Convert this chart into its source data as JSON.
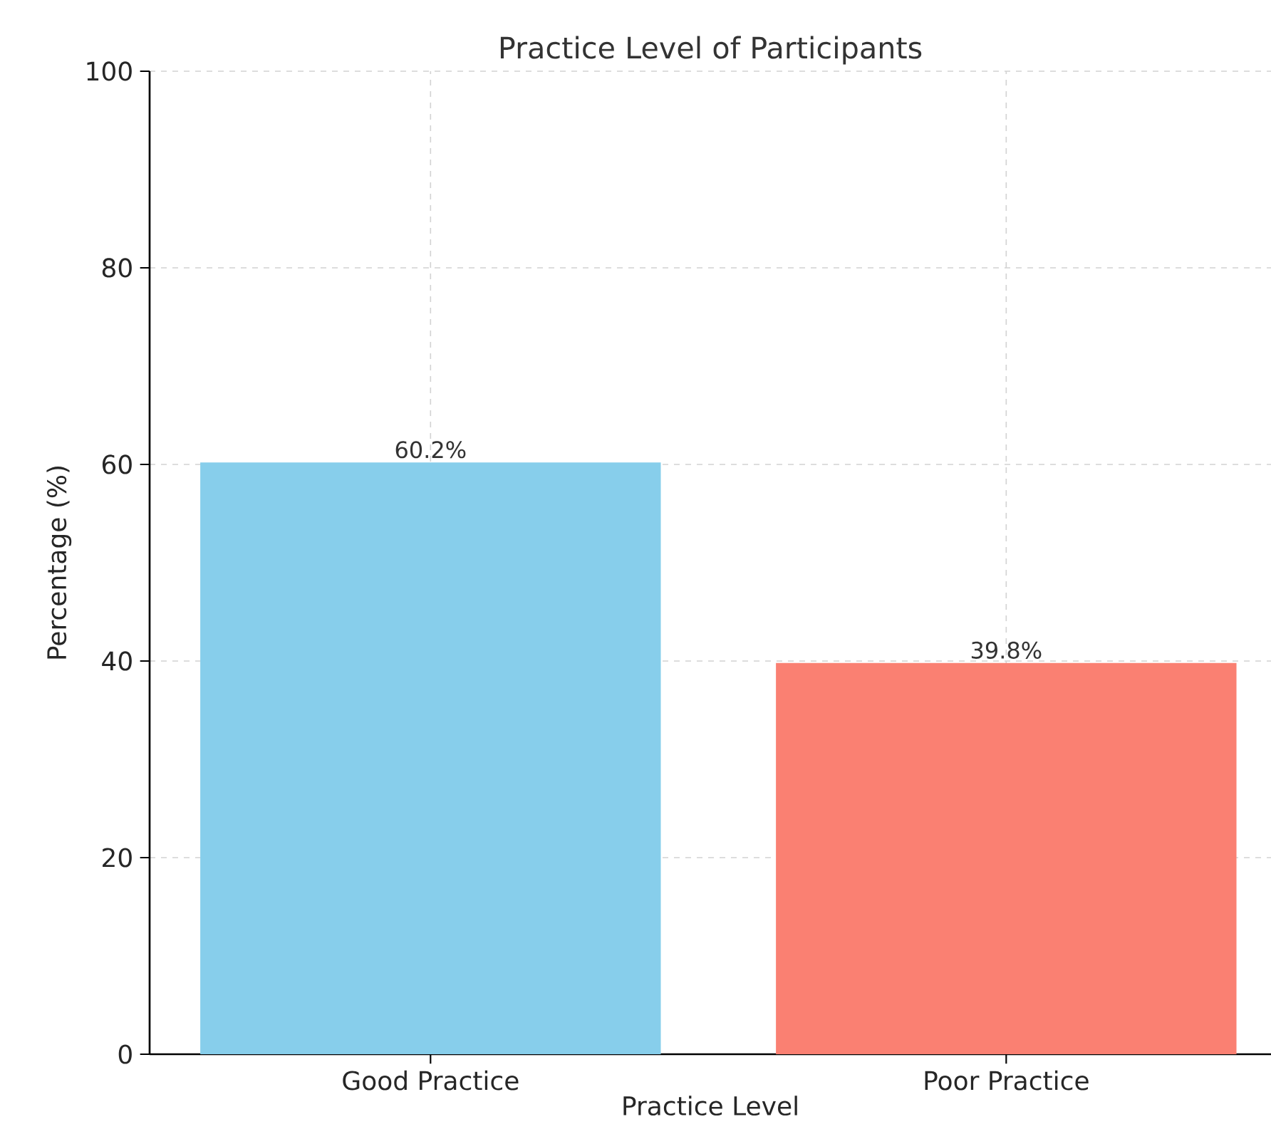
{
  "chart_data": {
    "type": "bar",
    "title": "Practice Level of Participants",
    "xlabel": "Practice Level",
    "ylabel": "Percentage (%)",
    "categories": [
      "Good Practice",
      "Poor Practice"
    ],
    "values": [
      60.2,
      39.8
    ],
    "colors": [
      "#87ceeb",
      "#fa8072"
    ],
    "value_labels": [
      "60.2%",
      "39.8%"
    ],
    "ylim": [
      0,
      100
    ],
    "yticks": [
      0,
      20,
      40,
      60,
      80,
      100
    ],
    "grid": true
  }
}
